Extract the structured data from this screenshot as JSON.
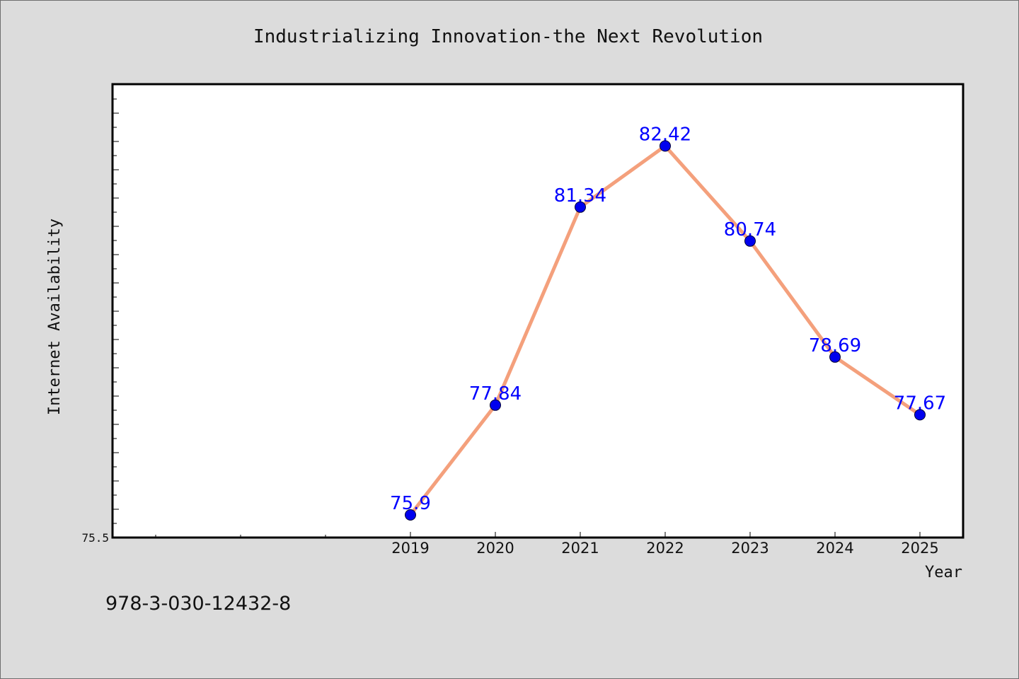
{
  "chart_data": {
    "type": "line",
    "title": "Industrializing Innovation-the Next Revolution",
    "xlabel": "Year",
    "ylabel": "Internet Availability",
    "categories": [
      "2019",
      "2020",
      "2021",
      "2022",
      "2023",
      "2024",
      "2025"
    ],
    "series": [
      {
        "values": [
          75.9,
          77.84,
          81.34,
          82.42,
          80.74,
          78.69,
          77.67
        ]
      }
    ],
    "data_labels": [
      "75.9",
      "77.84",
      "81.34",
      "82.42",
      "80.74",
      "78.69",
      "77.67"
    ],
    "y_tick_label": "75.5",
    "ylim": [
      75.5,
      83.5
    ],
    "grid": false,
    "colors": {
      "line": "#f4a07c",
      "marker": "#0000ee",
      "label": "#0000ff",
      "frame": "#000000"
    }
  },
  "footer": {
    "isbn": "978-3-030-12432-8"
  }
}
